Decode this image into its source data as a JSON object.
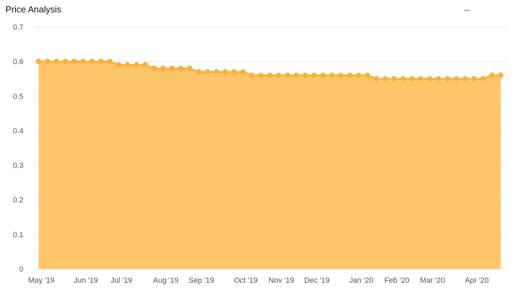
{
  "header": {
    "title": "Price Analysis",
    "readout": "--"
  },
  "colors": {
    "area": "#ffc56b",
    "line": "#f6a623",
    "point": "#f7b23b",
    "grid": "#e6e6e6"
  },
  "chart_data": {
    "type": "area",
    "title": "Price Analysis",
    "xlabel": "",
    "ylabel": "",
    "ylim": [
      0,
      0.7
    ],
    "yticks": [
      0,
      0.1,
      0.2,
      0.3,
      0.4,
      0.5,
      0.6,
      0.7
    ],
    "ytick_labels": [
      "0",
      "0.1",
      "0.2",
      "0.3",
      "0.4",
      "0.5",
      "0.6",
      "0.7"
    ],
    "xtick_labels": [
      "May '19",
      "Jun '19",
      "Jul '19",
      "Aug '19",
      "Sep '19",
      "Oct '19",
      "Nov '19",
      "Dec '19",
      "Jan '20",
      "Feb '20",
      "Mar '20",
      "Apr '20"
    ],
    "xtick_positions": [
      0,
      5,
      9,
      14,
      18,
      23,
      27,
      31,
      36,
      40,
      44,
      49
    ],
    "grid": true,
    "series": [
      {
        "values": [
          0.6,
          0.6,
          0.6,
          0.6,
          0.6,
          0.6,
          0.6,
          0.6,
          0.6,
          0.59,
          0.59,
          0.59,
          0.59,
          0.58,
          0.58,
          0.58,
          0.58,
          0.58,
          0.57,
          0.57,
          0.57,
          0.57,
          0.57,
          0.57,
          0.56,
          0.56,
          0.56,
          0.56,
          0.56,
          0.56,
          0.56,
          0.56,
          0.56,
          0.56,
          0.56,
          0.56,
          0.56,
          0.56,
          0.55,
          0.55,
          0.55,
          0.55,
          0.55,
          0.55,
          0.55,
          0.55,
          0.55,
          0.55,
          0.55,
          0.55,
          0.55,
          0.56,
          0.56
        ]
      }
    ]
  }
}
